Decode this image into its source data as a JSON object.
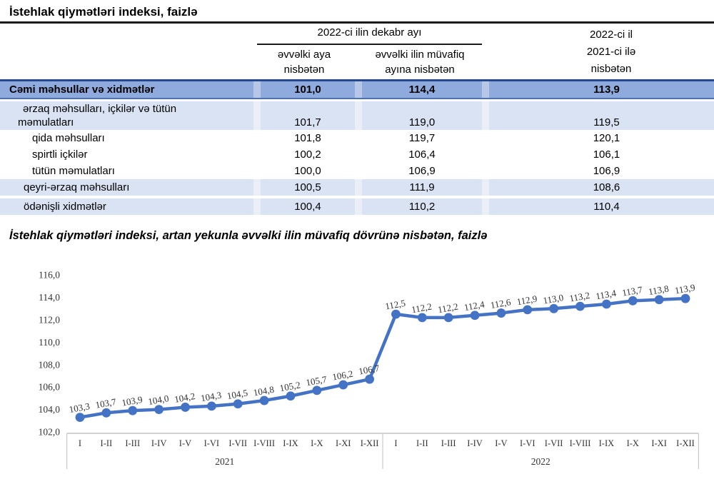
{
  "doc": {
    "title": "İstehlak qiymətləri indeksi, faizlə"
  },
  "table": {
    "header": {
      "group_december": "2022-ci ilin dekabr ayı",
      "sub_prev_month": "əvvəlki aya\nnisbətən",
      "sub_prev_year_month": "əvvəlki ilin müvafiq\nayına nisbətən",
      "annual": "2022-ci il\n2021-ci ilə\nnisbətən"
    },
    "rows": [
      {
        "label": "Cəmi məhsullar və xidmətlər",
        "to_prev_month": "101,0",
        "to_prev_year_month": "114,4",
        "to_prev_year": "113,9"
      },
      {
        "label": "ərzaq məhsulları, içkilər və tütün\nməmulatları",
        "to_prev_month": "101,7",
        "to_prev_year_month": "119,0",
        "to_prev_year": "119,5"
      },
      {
        "label": "qida məhsulları",
        "to_prev_month": "101,8",
        "to_prev_year_month": "119,7",
        "to_prev_year": "120,1"
      },
      {
        "label": "spirtli içkilər",
        "to_prev_month": "100,2",
        "to_prev_year_month": "106,4",
        "to_prev_year": "106,1"
      },
      {
        "label": "tütün məmulatları",
        "to_prev_month": "100,0",
        "to_prev_year_month": "106,9",
        "to_prev_year": "106,9"
      },
      {
        "label": "qeyri-ərzaq məhsulları",
        "to_prev_month": "100,5",
        "to_prev_year_month": "111,9",
        "to_prev_year": "108,6"
      },
      {
        "label": "ödənişli xidmətlər",
        "to_prev_month": "100,4",
        "to_prev_year_month": "110,2",
        "to_prev_year": "110,4"
      }
    ],
    "colors": {
      "total_row_fill": "#8faadc",
      "subtotal_row_fill": "#dae3f3",
      "total_row_border": "#24478f"
    }
  },
  "chart_data": {
    "type": "line",
    "title": "İstehlak qiymətləri indeksi, artan yekunla əvvəlki ilin müvafiq dövrünə nisbətən, faizlə",
    "series": [
      {
        "name": "İstehlak qiymətləri indeksi, artan yekunla",
        "color": "#4472c4",
        "values": [
          103.3,
          103.7,
          103.9,
          104.0,
          104.2,
          104.3,
          104.5,
          104.8,
          105.2,
          105.7,
          106.2,
          106.7,
          112.5,
          112.2,
          112.2,
          112.4,
          112.6,
          112.9,
          113.0,
          113.2,
          113.4,
          113.7,
          113.8,
          113.9
        ],
        "point_labels": [
          "103,3",
          "103,7",
          "103,9",
          "104,0",
          "104,2",
          "104,3",
          "104,5",
          "104,8",
          "105,2",
          "105,7",
          "106,2",
          "106,7",
          "112,5",
          "112,2",
          "112,2",
          "112,4",
          "112,6",
          "112,9",
          "113,0",
          "113,2",
          "113,4",
          "113,7",
          "113,8",
          "113,9"
        ]
      }
    ],
    "categories": [
      "I",
      "I-II",
      "I-III",
      "I-IV",
      "I-V",
      "I-VI",
      "I-VII",
      "I-VIII",
      "I-IX",
      "I-X",
      "I-XI",
      "I-XII",
      "I",
      "I-II",
      "I-III",
      "I-IV",
      "I-V",
      "I-VI",
      "I-VII",
      "I-VIII",
      "I-IX",
      "I-X",
      "I-XI",
      "I-XII"
    ],
    "groups": [
      {
        "label": "2021",
        "from": 0,
        "to": 11
      },
      {
        "label": "2022",
        "from": 12,
        "to": 23
      }
    ],
    "ylim": [
      102,
      116
    ],
    "yticks": {
      "values": [
        102,
        104,
        106,
        108,
        110,
        112,
        114,
        116
      ],
      "labels": [
        "102,0",
        "104,0",
        "106,0",
        "108,0",
        "110,0",
        "112,0",
        "114,0",
        "116,0"
      ]
    },
    "grid": false,
    "legend": false,
    "data_label_rotation_deg": -10
  }
}
